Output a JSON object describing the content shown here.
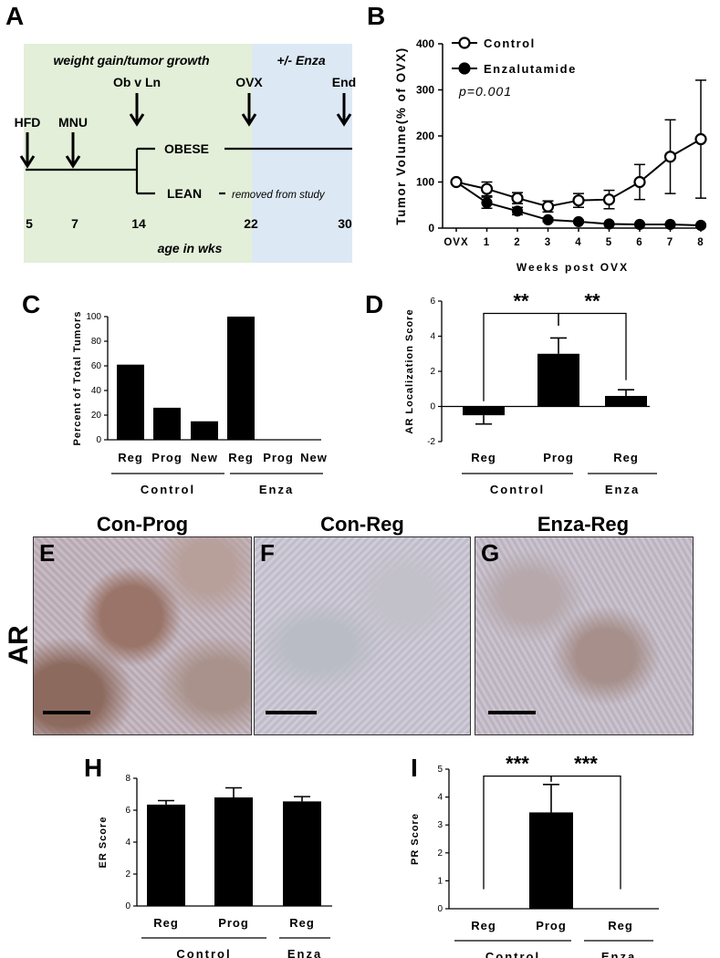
{
  "panels": {
    "A": {
      "letter": "A",
      "phase1_label": "weight gain/tumor growth",
      "phase2_label": "+/- Enza",
      "events": [
        "HFD",
        "MNU",
        "Ob v Ln",
        "OVX",
        "End"
      ],
      "branch_obese": "OBESE",
      "branch_lean": "LEAN",
      "lean_note": "removed from study",
      "ages": [
        "5",
        "7",
        "14",
        "22",
        "30"
      ],
      "age_label": "age in wks",
      "colors": {
        "phase1": "#e3efd9",
        "phase2": "#dce8f4"
      }
    },
    "B": {
      "letter": "B",
      "pvalue": "p=0.001"
    },
    "C": {
      "letter": "C",
      "group_labels": [
        "Control",
        "Enza"
      ]
    },
    "D": {
      "letter": "D",
      "sig": [
        "**",
        "**"
      ],
      "group_labels": [
        "Control",
        "Enza"
      ]
    },
    "E": {
      "letter": "E",
      "title": "Con-Prog"
    },
    "F": {
      "letter": "F",
      "title": "Con-Reg"
    },
    "G": {
      "letter": "G",
      "title": "Enza-Reg"
    },
    "row_label": "AR",
    "H": {
      "letter": "H",
      "group_labels": [
        "Control",
        "Enza"
      ]
    },
    "I": {
      "letter": "I",
      "sig": [
        "***",
        "***"
      ],
      "group_labels": [
        "Control",
        "Enza"
      ]
    }
  },
  "chart_data": [
    {
      "id": "B",
      "type": "line",
      "x": [
        "OVX",
        "1",
        "2",
        "3",
        "4",
        "5",
        "6",
        "7",
        "8"
      ],
      "xlabel": "Weeks post OVX",
      "ylabel": "Tumor Volume(% of OVX)",
      "ylim": [
        0,
        400
      ],
      "yticks": [
        0,
        100,
        200,
        300,
        400
      ],
      "legend": "top-left",
      "series": [
        {
          "name": "Control",
          "marker": "open-circle",
          "values": [
            100,
            85,
            65,
            47,
            60,
            62,
            100,
            155,
            193
          ],
          "errors": [
            0,
            15,
            12,
            12,
            15,
            20,
            38,
            80,
            128
          ]
        },
        {
          "name": "Enzalutamide",
          "marker": "filled-circle",
          "values": [
            100,
            55,
            37,
            18,
            14,
            9,
            8,
            8,
            6
          ],
          "errors": [
            0,
            12,
            8,
            4,
            3,
            2,
            2,
            2,
            2
          ]
        }
      ]
    },
    {
      "id": "C",
      "type": "bar",
      "categories": [
        "Reg",
        "Prog",
        "New",
        "Reg",
        "Prog",
        "New"
      ],
      "values": [
        61,
        26,
        15,
        100,
        0,
        0
      ],
      "ylabel": "Percent of Total Tumors",
      "ylim": [
        0,
        100
      ],
      "yticks": [
        0,
        20,
        40,
        60,
        80,
        100
      ]
    },
    {
      "id": "D",
      "type": "bar",
      "categories": [
        "Reg",
        "Prog",
        "Reg"
      ],
      "values": [
        -0.5,
        3.0,
        0.6
      ],
      "errors": [
        0.5,
        0.9,
        0.35
      ],
      "ylabel": "AR Localization Score",
      "ylim": [
        -2,
        6
      ],
      "yticks": [
        -2,
        0,
        2,
        4,
        6
      ]
    },
    {
      "id": "H",
      "type": "bar",
      "categories": [
        "Reg",
        "Prog",
        "Reg"
      ],
      "values": [
        6.35,
        6.8,
        6.55
      ],
      "errors": [
        0.25,
        0.6,
        0.3
      ],
      "ylabel": "ER Score",
      "ylim": [
        0,
        8
      ],
      "yticks": [
        0,
        2,
        4,
        6,
        8
      ]
    },
    {
      "id": "I",
      "type": "bar",
      "categories": [
        "Reg",
        "Prog",
        "Reg"
      ],
      "values": [
        0,
        3.45,
        0
      ],
      "errors": [
        0,
        1.0,
        0
      ],
      "ylabel": "PR Score",
      "ylim": [
        0,
        5
      ],
      "yticks": [
        0,
        1,
        2,
        3,
        4,
        5
      ]
    }
  ]
}
